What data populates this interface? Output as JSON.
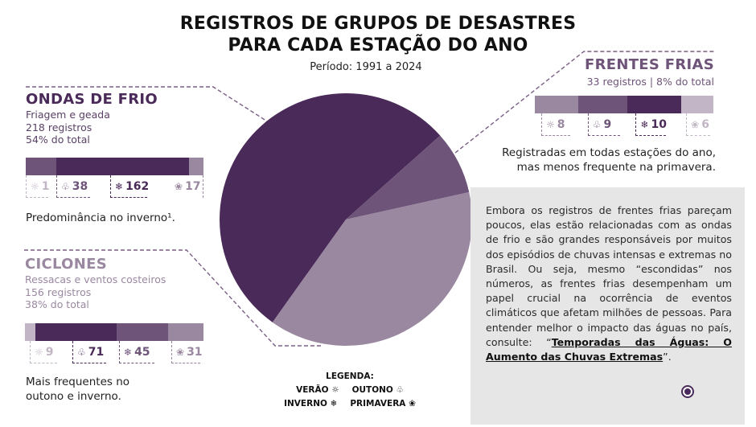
{
  "title_line1": "REGISTROS DE GRUPOS DE DESASTRES",
  "title_line2": "PARA CADA ESTAÇÃO DO ANO",
  "subtitle": "Período: 1991 a 2024",
  "colors": {
    "dark": "#4a2a58",
    "medium": "#6e5479",
    "light": "#9a88a1",
    "pale": "#c2b6c6",
    "dashed": "#7a5e86",
    "textbox_bg": "#e6e6e6"
  },
  "chart_data": {
    "type": "pie",
    "title": "REGISTROS DE GRUPOS DE DESASTRES PARA CADA ESTAÇÃO DO ANO",
    "subtitle": "Período: 1991 a 2024",
    "slices": [
      {
        "name": "Ondas de Frio",
        "value": 218,
        "percent": 54,
        "color": "#4a2a58"
      },
      {
        "name": "Frentes Frias",
        "value": 33,
        "percent": 8,
        "color": "#6e5479"
      },
      {
        "name": "Ciclones",
        "value": 156,
        "percent": 38,
        "color": "#9a88a1"
      }
    ],
    "seasonal_breakdown": [
      {
        "group": "Ondas de Frio",
        "verao": 1,
        "outono": 38,
        "inverno": 162,
        "primavera": 17
      },
      {
        "group": "Ciclones",
        "verao": 9,
        "outono": 71,
        "inverno": 45,
        "primavera": 31
      },
      {
        "group": "Frentes Frias",
        "verao": 8,
        "outono": 9,
        "inverno": 10,
        "primavera": 6
      }
    ],
    "legend": [
      "Verão",
      "Outono",
      "Inverno",
      "Primavera"
    ]
  },
  "groups": {
    "ondas": {
      "title": "ONDAS DE FRIO",
      "desc": "Friagem e geada",
      "registros": "218 registros",
      "pct": "54% do total",
      "counts": [
        {
          "icon": "☼",
          "value": "1"
        },
        {
          "icon": "♧",
          "value": "38"
        },
        {
          "icon": "❄",
          "value": "162"
        },
        {
          "icon": "❀",
          "value": "17"
        }
      ],
      "caption": "Predominância no inverno¹."
    },
    "ciclones": {
      "title": "CICLONES",
      "desc": "Ressacas e ventos costeiros",
      "registros": "156 registros",
      "pct": "38% do total",
      "counts": [
        {
          "icon": "☼",
          "value": "9"
        },
        {
          "icon": "♧",
          "value": "71"
        },
        {
          "icon": "❄",
          "value": "45"
        },
        {
          "icon": "❀",
          "value": "31"
        }
      ],
      "caption_line1": "Mais frequentes no",
      "caption_line2": "outono e inverno."
    },
    "frentes": {
      "title": "FRENTES FRIAS",
      "info": "33 registros | 8% do total",
      "counts": [
        {
          "icon": "☼",
          "value": "8"
        },
        {
          "icon": "♧",
          "value": "9"
        },
        {
          "icon": "❄",
          "value": "10"
        },
        {
          "icon": "❀",
          "value": "6"
        }
      ],
      "caption_line1": "Registradas em todas estações do ano,",
      "caption_line2": "mas menos frequente na primavera."
    }
  },
  "textbox": {
    "body": "Embora os registros de frentes frias pareçam poucos, elas estão relacionadas com as ondas de frio e são grandes responsáveis por muitos dos episódios de chuvas intensas e extremas no Brasil. Ou seja, mesmo “escondidas” nos números, as frentes frias desempenham um papel crucial na ocorrência de eventos climáticos que afetam milhões de pessoas. Para entender melhor o impacto das águas no país, consulte: “",
    "link": "Temporadas das Águas: O Aumento das Chuvas Extremas",
    "end": "”."
  },
  "legend": {
    "title": "LEGENDA:",
    "verao": "VERÃO ☼",
    "outono": "OUTONO ♧",
    "inverno": "INVERNO ❄",
    "primavera": "PRIMAVERA ❀"
  }
}
